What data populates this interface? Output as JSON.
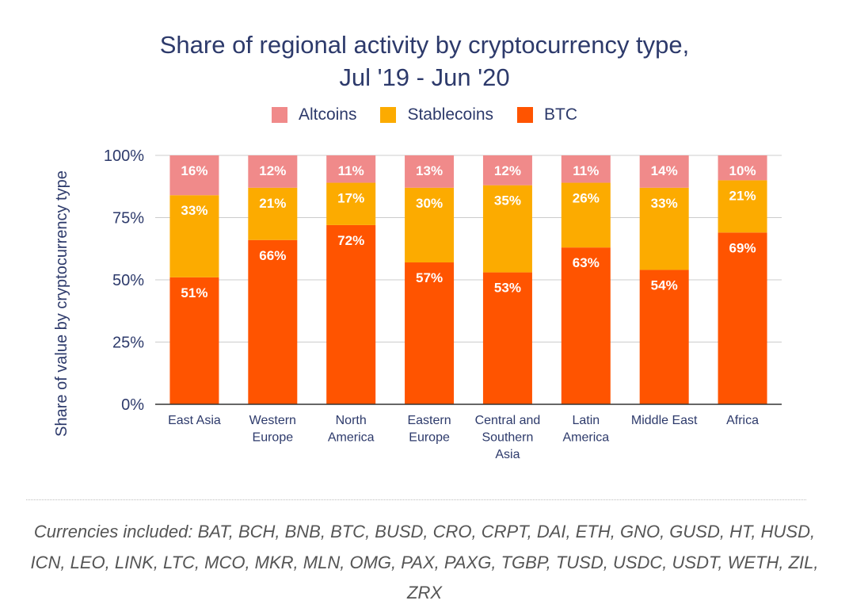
{
  "title_lines": [
    "Share of regional activity by cryptocurrency type,",
    "Jul '19 - Jun '20"
  ],
  "footnote": "Currencies included: BAT, BCH, BNB, BTC, BUSD, CRO, CRPT, DAI, ETH, GNO, GUSD, HT, HUSD, ICN, LEO, LINK, LTC, MCO, MKR, MLN, OMG, PAX, PAXG, TGBP, TUSD, USDC, USDT, WETH, ZIL, ZRX",
  "chart_data": {
    "type": "bar",
    "stacked": true,
    "title": "Share of regional activity by cryptocurrency type, Jul '19 - Jun '20",
    "xlabel": "",
    "ylabel": "Share of value by cryptocurrency type",
    "ylim": [
      0,
      100
    ],
    "yticks": [
      "0%",
      "25%",
      "50%",
      "75%",
      "100%"
    ],
    "grid": true,
    "legend_position": "top",
    "categories": [
      [
        "East Asia"
      ],
      [
        "Western",
        "Europe"
      ],
      [
        "North",
        "America"
      ],
      [
        "Eastern",
        "Europe"
      ],
      [
        "Central and",
        "Southern",
        "Asia"
      ],
      [
        "Latin",
        "America"
      ],
      [
        "Middle East"
      ],
      [
        "Africa"
      ]
    ],
    "series": [
      {
        "name": "BTC",
        "color": "#ff5400",
        "values": [
          51,
          66,
          72,
          57,
          53,
          63,
          54,
          69
        ]
      },
      {
        "name": "Stablecoins",
        "color": "#fcab00",
        "values": [
          33,
          21,
          17,
          30,
          35,
          26,
          33,
          21
        ]
      },
      {
        "name": "Altcoins",
        "color": "#f08a8a",
        "values": [
          16,
          12,
          11,
          13,
          12,
          11,
          14,
          10
        ]
      }
    ],
    "legend_order": [
      "Altcoins",
      "Stablecoins",
      "BTC"
    ]
  }
}
